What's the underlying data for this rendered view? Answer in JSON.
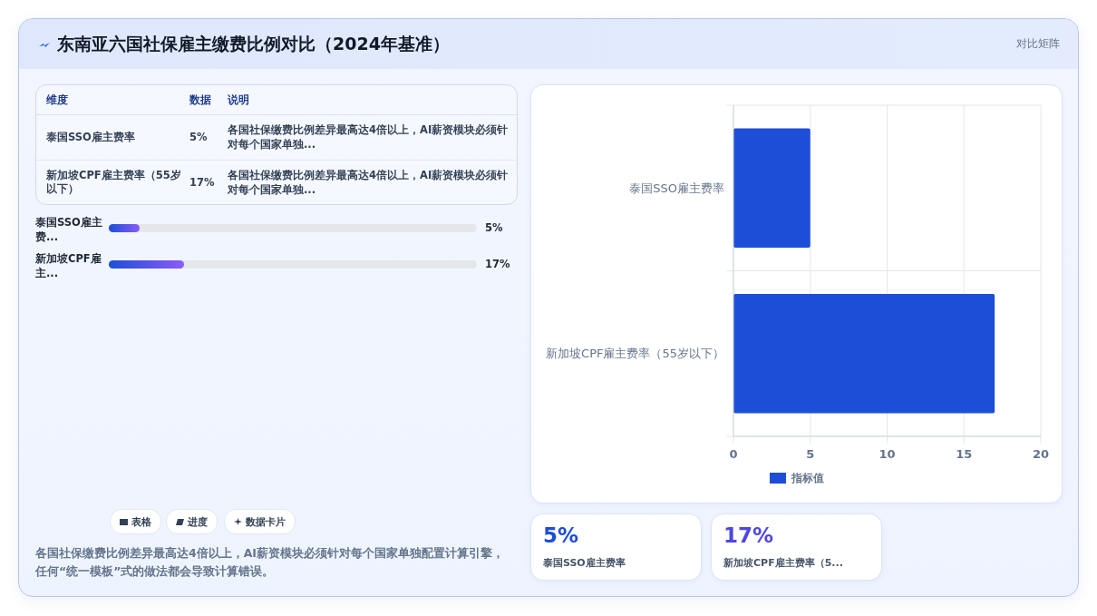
{
  "chart_data": {
    "type": "bar",
    "orientation": "horizontal",
    "title": "东南亚六国社保雇主缴费比例对比（2024年基准）",
    "subtitle": "对比矩阵",
    "categories": [
      "泰国SSO雇主费率",
      "新加坡CPF雇主费率（55岁以下）"
    ],
    "series": [
      {
        "name": "指标值",
        "color": "#1d4ed8",
        "values": [
          5,
          17
        ]
      }
    ],
    "value_labels": [
      "5%",
      "17%"
    ],
    "xlim": [
      0,
      20
    ],
    "xticks": [
      0,
      5,
      10,
      15,
      20
    ],
    "grid": true,
    "legend": "bottom",
    "annotations": [
      "维度",
      "数据",
      "说明",
      "表格",
      "进度",
      "数据卡片",
      "各国社保缴费比例差异最高达4倍以上，AI薪资模块必须针对每个国家单独配置计算引擎，任何“统一模板”式的做法都会导致计算错误。",
      "各国社保缴费比例差异最高达4倍以上，AI薪资模块必须针对每个国家单独...",
      "泰国SSO雇主费...",
      "新加坡CPF雇主...",
      "泰国SSO雇主费率",
      "新加坡CPF雇主费率（5..."
    ]
  }
}
